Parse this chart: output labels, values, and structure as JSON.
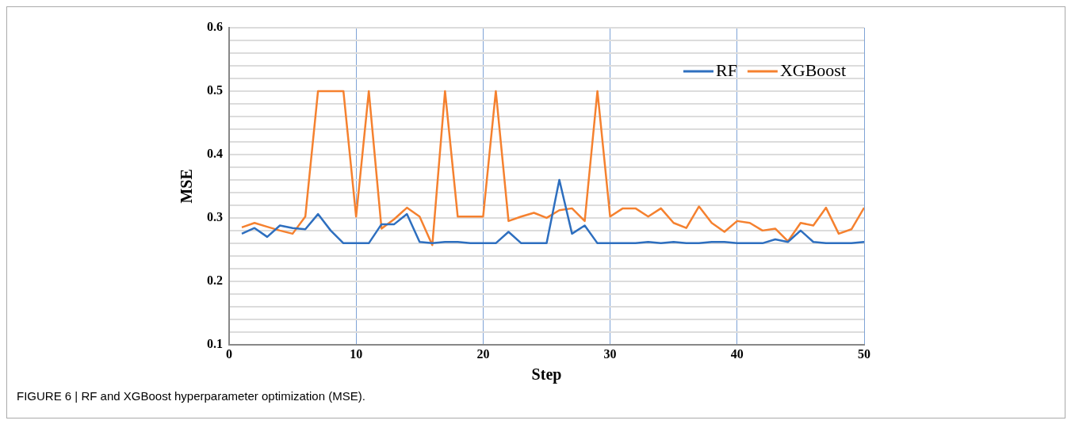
{
  "chart_data": {
    "type": "line",
    "xlabel": "Step",
    "ylabel": "MSE",
    "annotations": [
      "FIGURE 6 | RF and XGBoost hyperparameter optimization (MSE)."
    ],
    "x": [
      1,
      2,
      3,
      4,
      5,
      6,
      7,
      8,
      9,
      10,
      11,
      12,
      13,
      14,
      15,
      16,
      17,
      18,
      19,
      20,
      21,
      22,
      23,
      24,
      25,
      26,
      27,
      28,
      29,
      30,
      31,
      32,
      33,
      34,
      35,
      36,
      37,
      38,
      39,
      40,
      41,
      42,
      43,
      44,
      45,
      46,
      47,
      48,
      49,
      50
    ],
    "series": [
      {
        "name": "RF",
        "color": "#2e6fbf",
        "values": [
          0.275,
          0.284,
          0.27,
          0.288,
          0.284,
          0.282,
          0.306,
          0.28,
          0.26,
          0.26,
          0.26,
          0.29,
          0.29,
          0.306,
          0.262,
          0.26,
          0.262,
          0.262,
          0.26,
          0.26,
          0.26,
          0.278,
          0.26,
          0.26,
          0.26,
          0.36,
          0.275,
          0.288,
          0.26,
          0.26,
          0.26,
          0.26,
          0.262,
          0.26,
          0.262,
          0.26,
          0.26,
          0.262,
          0.262,
          0.26,
          0.26,
          0.26,
          0.266,
          0.262,
          0.28,
          0.262,
          0.26,
          0.26,
          0.26,
          0.262
        ]
      },
      {
        "name": "XGBoost",
        "color": "#f5812f",
        "values": [
          0.285,
          0.292,
          0.286,
          0.28,
          0.275,
          0.302,
          0.5,
          0.5,
          0.5,
          0.302,
          0.5,
          0.283,
          0.298,
          0.316,
          0.302,
          0.257,
          0.5,
          0.302,
          0.302,
          0.302,
          0.5,
          0.295,
          0.302,
          0.308,
          0.3,
          0.312,
          0.315,
          0.295,
          0.5,
          0.302,
          0.315,
          0.315,
          0.302,
          0.315,
          0.292,
          0.284,
          0.318,
          0.292,
          0.278,
          0.295,
          0.292,
          0.28,
          0.283,
          0.263,
          0.292,
          0.288,
          0.316,
          0.275,
          0.282,
          0.316
        ]
      }
    ],
    "xlim": [
      0,
      50
    ],
    "xticks": [
      0,
      10,
      20,
      30,
      40,
      50
    ],
    "ylim": [
      0.1,
      0.6
    ],
    "yticks": [
      0.1,
      {
        "value": 0.12,
        "label": null
      },
      {
        "value": 0.14,
        "label": null
      },
      {
        "value": 0.16,
        "label": null
      },
      {
        "value": 0.18,
        "label": null
      },
      0.2,
      {
        "value": 0.22,
        "label": null
      },
      {
        "value": 0.24,
        "label": null
      },
      {
        "value": 0.26,
        "label": null
      },
      {
        "value": 0.28,
        "label": null
      },
      0.3,
      {
        "value": 0.32,
        "label": null
      },
      {
        "value": 0.34,
        "label": null
      },
      {
        "value": 0.36,
        "label": null
      },
      {
        "value": 0.38,
        "label": null
      },
      0.4,
      {
        "value": 0.42,
        "label": null
      },
      {
        "value": 0.44,
        "label": null
      },
      {
        "value": 0.46,
        "label": null
      },
      {
        "value": 0.48,
        "label": null
      },
      0.5,
      {
        "value": 0.52,
        "label": null
      },
      {
        "value": 0.54,
        "label": null
      },
      {
        "value": 0.56,
        "label": null
      },
      {
        "value": 0.58,
        "label": null
      },
      0.6
    ],
    "grid": true,
    "legend": "top right",
    "marker": "none",
    "line_style": "solid"
  }
}
